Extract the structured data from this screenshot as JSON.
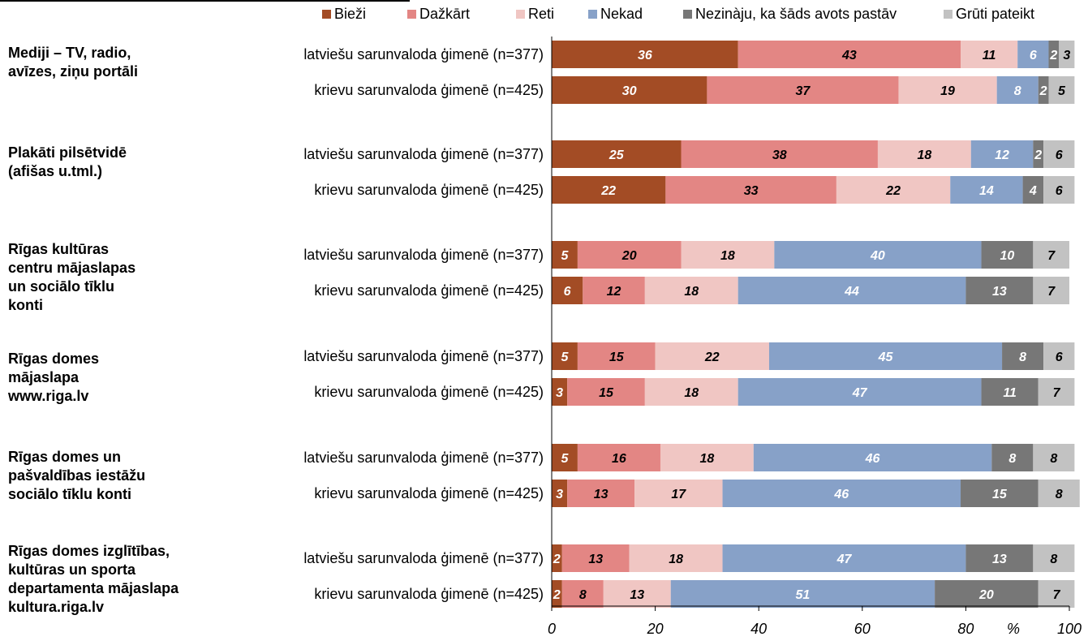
{
  "chart_data": {
    "type": "bar",
    "orientation": "horizontal",
    "stacked": true,
    "title": "",
    "xlabel": "%",
    "ylabel": "",
    "xlim": [
      0,
      100
    ],
    "x_ticks": [
      "0",
      "20",
      "40",
      "60",
      "80",
      "100"
    ],
    "grid": false,
    "legend_position": "top",
    "series": [
      {
        "name": "Bieži",
        "color": "#a34c25"
      },
      {
        "name": "Dažkārt",
        "color": "#e38684"
      },
      {
        "name": "Reti",
        "color": "#f0c6c3"
      },
      {
        "name": "Nekad",
        "color": "#87a1c8"
      },
      {
        "name": "Nezinàju, ka šāds avots pastāv",
        "color": "#777777"
      },
      {
        "name": "Grūti pateikt",
        "color": "#c2c2c2"
      }
    ],
    "groups": [
      {
        "label": [
          "Mediji – TV, radio,",
          "avīzes, ziņu portāli"
        ],
        "rows": [
          {
            "label": "latviešu sarunvaloda ģimenē (n=377)",
            "values": [
              36,
              43,
              11,
              6,
              2,
              3
            ]
          },
          {
            "label": "krievu sarunvaloda ģimenē (n=425)",
            "values": [
              30,
              37,
              19,
              8,
              2,
              5
            ]
          }
        ]
      },
      {
        "label": [
          "Plakāti pilsētvidē",
          "(afišas u.tml.)"
        ],
        "rows": [
          {
            "label": "latviešu sarunvaloda ģimenē (n=377)",
            "values": [
              25,
              38,
              18,
              12,
              2,
              6
            ]
          },
          {
            "label": "krievu sarunvaloda ģimenē (n=425)",
            "values": [
              22,
              33,
              22,
              14,
              4,
              6
            ]
          }
        ]
      },
      {
        "label": [
          "Rīgas kultūras",
          "centru mājaslapas",
          "un sociālo tīklu",
          "konti"
        ],
        "rows": [
          {
            "label": "latviešu sarunvaloda ģimenē (n=377)",
            "values": [
              5,
              20,
              18,
              40,
              10,
              7
            ]
          },
          {
            "label": "krievu sarunvaloda ģimenē (n=425)",
            "values": [
              6,
              12,
              18,
              44,
              13,
              7
            ]
          }
        ]
      },
      {
        "label": [
          "Rīgas domes",
          "mājaslapa",
          "www.riga.lv"
        ],
        "rows": [
          {
            "label": "latviešu sarunvaloda ģimenē (n=377)",
            "values": [
              5,
              15,
              22,
              45,
              8,
              6
            ]
          },
          {
            "label": "krievu sarunvaloda ģimenē (n=425)",
            "values": [
              3,
              15,
              18,
              47,
              11,
              7
            ]
          }
        ]
      },
      {
        "label": [
          "Rīgas domes un",
          "pašvaldības iestāžu",
          "sociālo tīklu konti"
        ],
        "rows": [
          {
            "label": "latviešu sarunvaloda ģimenē (n=377)",
            "values": [
              5,
              16,
              18,
              46,
              8,
              8
            ]
          },
          {
            "label": "krievu sarunvaloda ģimenē (n=425)",
            "values": [
              3,
              13,
              17,
              46,
              15,
              8
            ]
          }
        ]
      },
      {
        "label": [
          "Rīgas domes izglītības,",
          "kultūras un sporta",
          "departamenta mājaslapa",
          "kultura.riga.lv"
        ],
        "rows": [
          {
            "label": "latviešu sarunvaloda ģimenē (n=377)",
            "values": [
              2,
              13,
              18,
              47,
              13,
              8
            ]
          },
          {
            "label": "krievu sarunvaloda ģimenē (n=425)",
            "values": [
              2,
              8,
              13,
              51,
              20,
              7
            ]
          }
        ]
      }
    ]
  }
}
